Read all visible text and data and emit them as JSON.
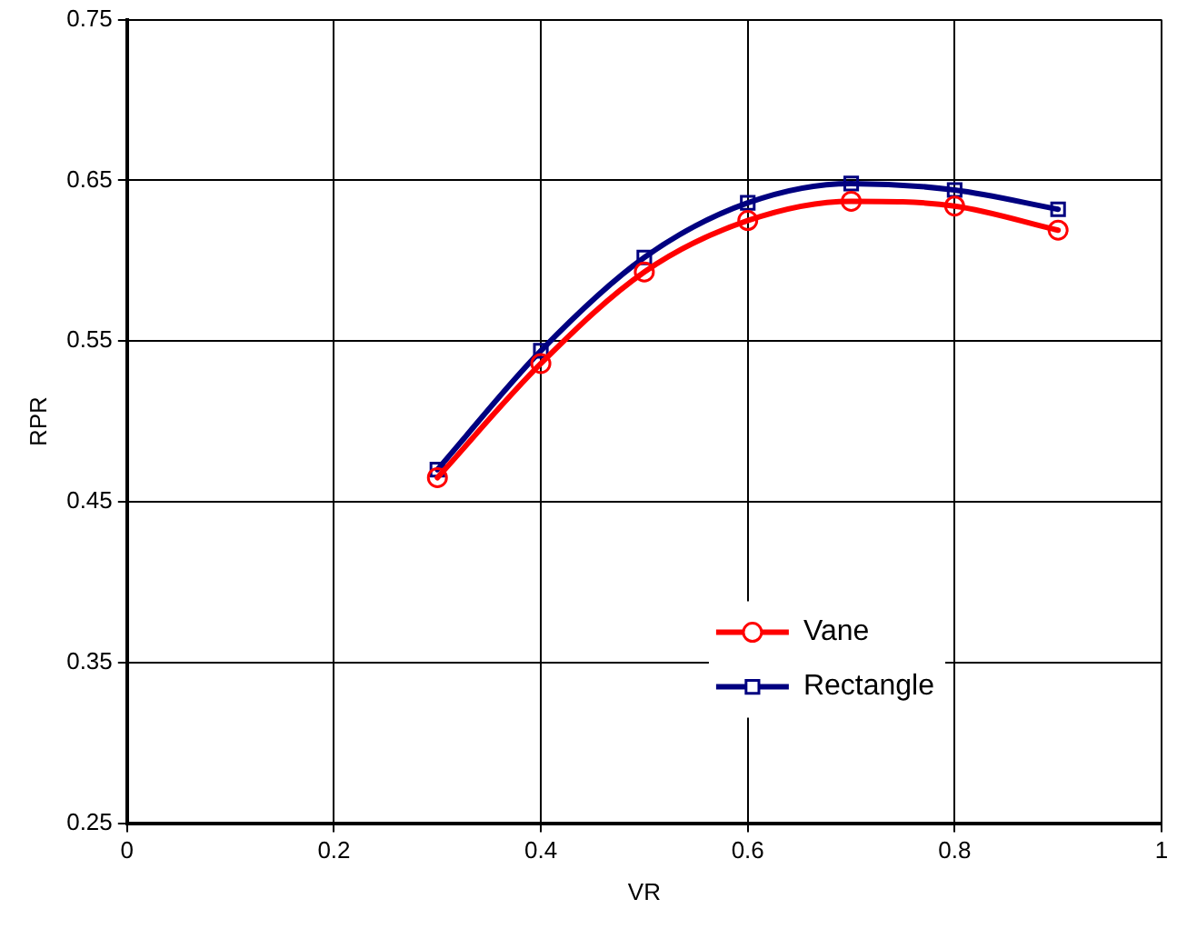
{
  "chart_data": {
    "type": "line",
    "xlabel": "VR",
    "ylabel": "RPR",
    "x": [
      0.3,
      0.4,
      0.5,
      0.6,
      0.7,
      0.8,
      0.9
    ],
    "series": [
      {
        "name": "Vane",
        "color": "#ff0000",
        "marker": "circle",
        "values": [
          0.465,
          0.536,
          0.593,
          0.625,
          0.637,
          0.634,
          0.619
        ]
      },
      {
        "name": "Rectangle",
        "color": "#000080",
        "marker": "square",
        "values": [
          0.47,
          0.544,
          0.602,
          0.636,
          0.648,
          0.644,
          0.632
        ]
      }
    ],
    "xlim": [
      0,
      1
    ],
    "xticks": [
      0,
      0.2,
      0.4,
      0.6,
      0.8,
      1
    ],
    "ylim": [
      0.25,
      0.75
    ],
    "yticks": [
      0.25,
      0.35,
      0.45,
      0.55,
      0.65,
      0.75
    ],
    "grid": true,
    "legend": "bottom right",
    "line_style": "solid"
  }
}
